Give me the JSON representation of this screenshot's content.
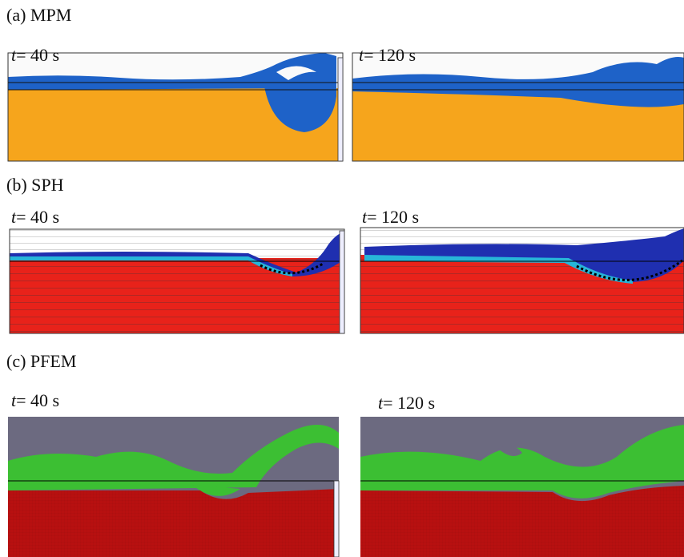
{
  "panels": [
    {
      "label": "(a) MPM",
      "times": [
        "t= 40 s",
        "t= 120 s"
      ]
    },
    {
      "label": "(b) SPH",
      "times": [
        "t= 40 s",
        "t= 120 s"
      ]
    },
    {
      "label": "(c) PFEM",
      "times": [
        "t= 40 s",
        "t= 120 s"
      ]
    }
  ]
}
